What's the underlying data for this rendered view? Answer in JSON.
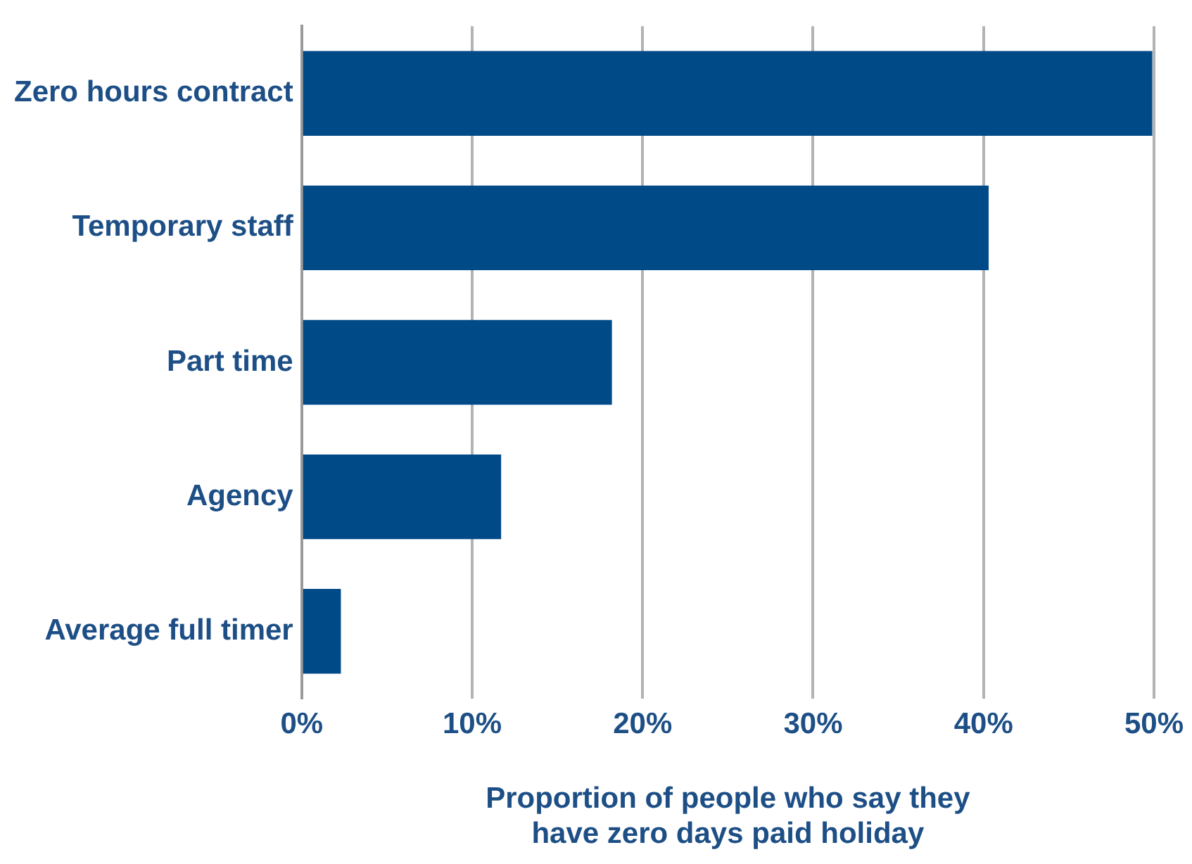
{
  "chart_data": {
    "type": "bar",
    "orientation": "horizontal",
    "categories": [
      "Zero hours contract",
      "Temporary staff",
      "Part time",
      "Agency",
      "Average full timer"
    ],
    "values": [
      49.9,
      40.3,
      18.2,
      11.7,
      2.3
    ],
    "color": "#004a87",
    "xlabel": "Proportion of people who say they have zero days paid holiday",
    "xlim": [
      0,
      50
    ],
    "xticks": [
      {
        "value": 0,
        "label": "0%"
      },
      {
        "value": 10,
        "label": "10%"
      },
      {
        "value": 20,
        "label": "20%"
      },
      {
        "value": 30,
        "label": "30%"
      },
      {
        "value": 40,
        "label": "40%"
      },
      {
        "value": 50,
        "label": "50%"
      }
    ],
    "grid": "x",
    "legend": false
  }
}
